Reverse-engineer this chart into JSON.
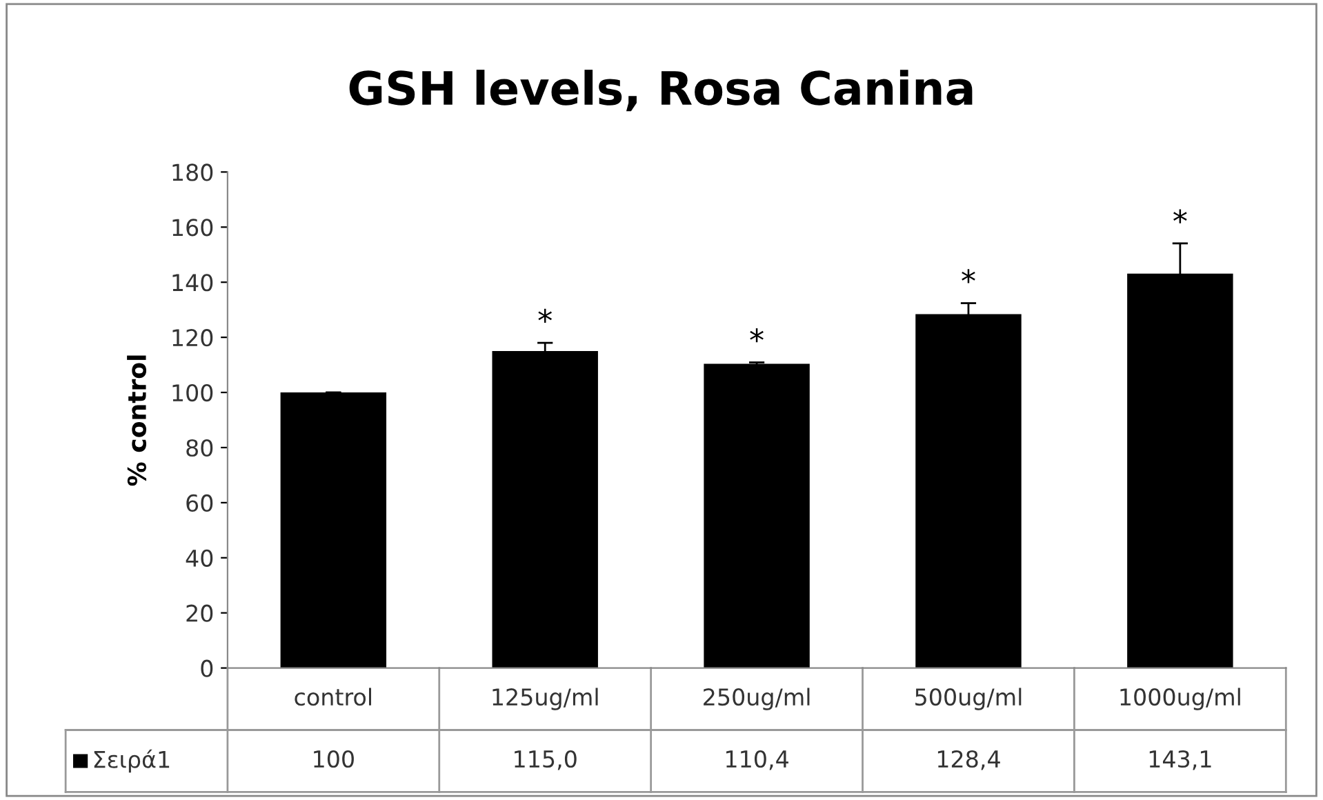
{
  "chart_data": {
    "type": "bar",
    "title": "GSH levels, Rosa Canina",
    "ylabel": "% control",
    "categories": [
      "control",
      "125ug/ml",
      "250ug/ml",
      "500ug/ml",
      "1000ug/ml"
    ],
    "series": [
      {
        "name": "Σειρά1",
        "color": "#000000",
        "values": [
          100,
          115.0,
          110.4,
          128.4,
          143.1
        ],
        "errors": [
          null,
          3,
          0.5,
          4,
          11
        ],
        "value_labels": [
          "100",
          "115,0",
          "110,4",
          "128,4",
          "143,1"
        ]
      }
    ],
    "ylim": [
      0,
      180
    ],
    "yticks": [
      0,
      20,
      40,
      60,
      80,
      100,
      120,
      140,
      160,
      180
    ],
    "grid": false,
    "legend": "bottom left",
    "annotations": [
      "*",
      "*",
      "*",
      "*"
    ]
  }
}
